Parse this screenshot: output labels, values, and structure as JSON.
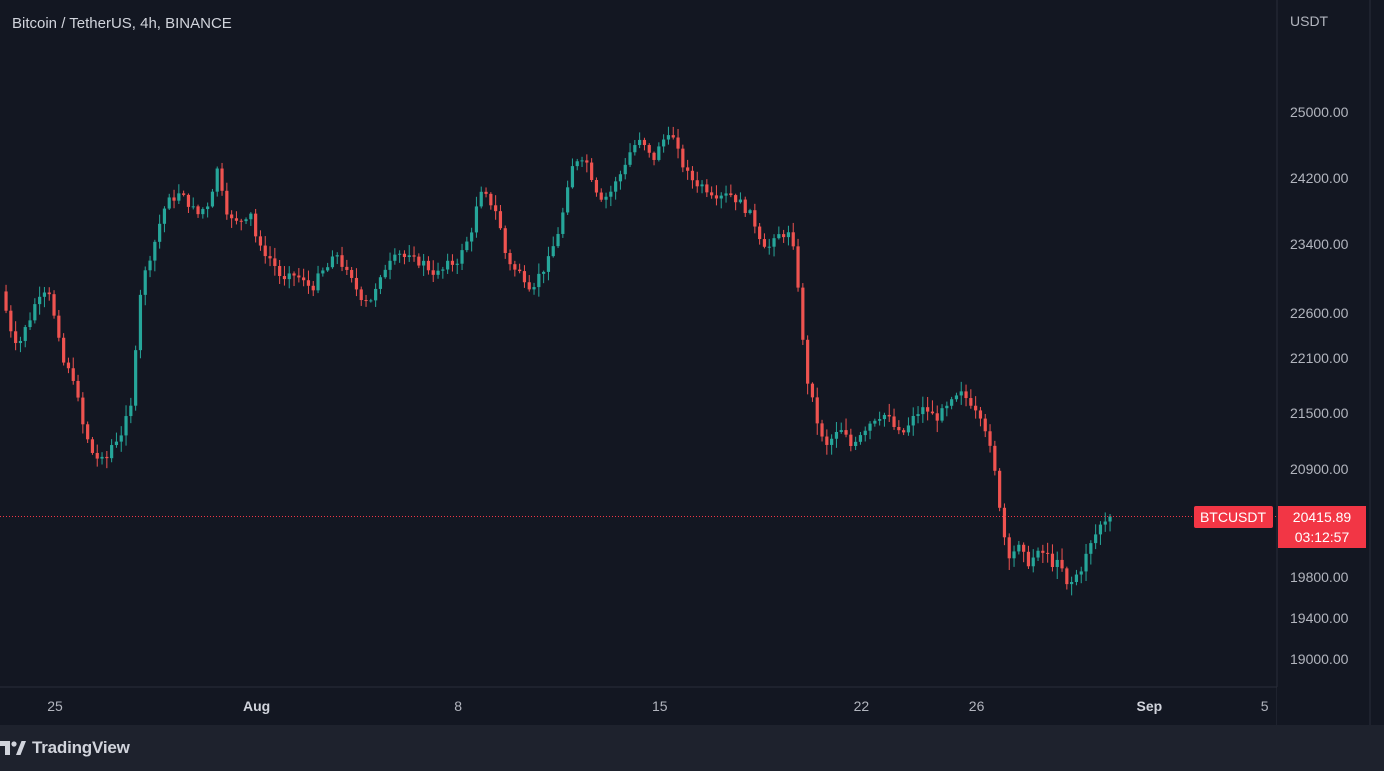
{
  "header": {
    "symbol_title": "Bitcoin / TetherUS, 4h, BINANCE"
  },
  "axis": {
    "unit": "USDT"
  },
  "footer": {
    "brand": "TradingView"
  },
  "colors": {
    "background": "#131722",
    "up": "#26a69a",
    "down": "#ef5350",
    "price_tag": "#f23645"
  },
  "chart_data": {
    "type": "candlestick",
    "title": "Bitcoin / TetherUS, 4h, BINANCE",
    "ylabel": "USDT",
    "ylim": [
      18700,
      26000
    ],
    "y_ticks": [
      "25000.00",
      "24200.00",
      "23400.00",
      "22600.00",
      "22100.00",
      "21500.00",
      "20900.00",
      "19800.00",
      "19400.00",
      "19000.00"
    ],
    "y_tick_values": [
      25000,
      24200,
      23400,
      22600,
      22100,
      21500,
      20900,
      19800,
      19400,
      19000
    ],
    "x_ticks": [
      {
        "label": "25",
        "bold": false
      },
      {
        "label": "Aug",
        "bold": true
      },
      {
        "label": "8",
        "bold": false
      },
      {
        "label": "15",
        "bold": false
      },
      {
        "label": "22",
        "bold": false
      },
      {
        "label": "26",
        "bold": false
      },
      {
        "label": "Sep",
        "bold": true
      },
      {
        "label": "5",
        "bold": false
      }
    ],
    "x_tick_days": [
      25,
      32,
      39,
      46,
      53,
      57,
      63,
      67
    ],
    "x_start_day": 23.3,
    "last_price_label": "BTCUSDT",
    "last_price": 20415.89,
    "last_price_text": "20415.89",
    "countdown": "03:12:57",
    "close_path": [
      [
        23.3,
        22850
      ],
      [
        23.6,
        22450
      ],
      [
        23.9,
        22250
      ],
      [
        24.3,
        22550
      ],
      [
        24.7,
        22900
      ],
      [
        25.0,
        22850
      ],
      [
        25.2,
        22400
      ],
      [
        25.5,
        22000
      ],
      [
        25.8,
        21900
      ],
      [
        26.1,
        21400
      ],
      [
        26.4,
        21100
      ],
      [
        26.7,
        21000
      ],
      [
        26.9,
        20950
      ],
      [
        27.1,
        21150
      ],
      [
        27.5,
        21300
      ],
      [
        27.8,
        21550
      ],
      [
        28.1,
        22800
      ],
      [
        28.4,
        23200
      ],
      [
        28.7,
        23500
      ],
      [
        28.9,
        23800
      ],
      [
        29.2,
        23950
      ],
      [
        29.5,
        24000
      ],
      [
        29.8,
        23900
      ],
      [
        30.1,
        23750
      ],
      [
        30.5,
        23900
      ],
      [
        30.8,
        24300
      ],
      [
        31.0,
        24050
      ],
      [
        31.2,
        23700
      ],
      [
        31.5,
        23650
      ],
      [
        31.8,
        23750
      ],
      [
        32.0,
        23800
      ],
      [
        32.2,
        23350
      ],
      [
        32.5,
        23300
      ],
      [
        32.8,
        23150
      ],
      [
        33.1,
        22950
      ],
      [
        33.5,
        23050
      ],
      [
        33.8,
        22950
      ],
      [
        34.1,
        22900
      ],
      [
        34.4,
        23050
      ],
      [
        34.7,
        23150
      ],
      [
        35.0,
        23300
      ],
      [
        35.2,
        23100
      ],
      [
        35.5,
        22950
      ],
      [
        35.8,
        22800
      ],
      [
        36.1,
        22750
      ],
      [
        36.4,
        22900
      ],
      [
        36.7,
        23200
      ],
      [
        37.0,
        23350
      ],
      [
        37.3,
        23250
      ],
      [
        37.6,
        23200
      ],
      [
        37.9,
        23200
      ],
      [
        38.2,
        23100
      ],
      [
        38.5,
        23050
      ],
      [
        38.8,
        23150
      ],
      [
        39.1,
        23200
      ],
      [
        39.4,
        23350
      ],
      [
        39.7,
        23650
      ],
      [
        39.9,
        24000
      ],
      [
        40.2,
        23950
      ],
      [
        40.5,
        23800
      ],
      [
        40.8,
        23300
      ],
      [
        41.1,
        23100
      ],
      [
        41.4,
        23050
      ],
      [
        41.7,
        22900
      ],
      [
        42.0,
        23050
      ],
      [
        42.3,
        23200
      ],
      [
        42.6,
        23500
      ],
      [
        42.9,
        23900
      ],
      [
        43.1,
        24300
      ],
      [
        43.4,
        24500
      ],
      [
        43.7,
        24350
      ],
      [
        43.9,
        24100
      ],
      [
        44.2,
        23950
      ],
      [
        44.5,
        24050
      ],
      [
        44.8,
        24250
      ],
      [
        45.1,
        24500
      ],
      [
        45.4,
        24650
      ],
      [
        45.7,
        24550
      ],
      [
        45.9,
        24400
      ],
      [
        46.2,
        24600
      ],
      [
        46.5,
        24800
      ],
      [
        46.8,
        24500
      ],
      [
        47.1,
        24250
      ],
      [
        47.4,
        24150
      ],
      [
        47.7,
        24100
      ],
      [
        47.9,
        24050
      ],
      [
        48.2,
        24000
      ],
      [
        48.5,
        24050
      ],
      [
        48.8,
        23950
      ],
      [
        49.1,
        23850
      ],
      [
        49.4,
        23700
      ],
      [
        49.7,
        23450
      ],
      [
        50.0,
        23350
      ],
      [
        50.3,
        23500
      ],
      [
        50.6,
        23550
      ],
      [
        50.9,
        23200
      ],
      [
        51.0,
        22800
      ],
      [
        51.2,
        22000
      ],
      [
        51.4,
        21700
      ],
      [
        51.6,
        21450
      ],
      [
        51.9,
        21100
      ],
      [
        52.2,
        21250
      ],
      [
        52.5,
        21300
      ],
      [
        52.8,
        21150
      ],
      [
        53.0,
        21250
      ],
      [
        53.3,
        21350
      ],
      [
        53.6,
        21450
      ],
      [
        53.9,
        21500
      ],
      [
        54.2,
        21400
      ],
      [
        54.5,
        21250
      ],
      [
        54.8,
        21350
      ],
      [
        55.1,
        21500
      ],
      [
        55.4,
        21550
      ],
      [
        55.7,
        21450
      ],
      [
        56.0,
        21500
      ],
      [
        56.3,
        21600
      ],
      [
        56.6,
        21700
      ],
      [
        56.9,
        21650
      ],
      [
        57.2,
        21550
      ],
      [
        57.4,
        21450
      ],
      [
        57.7,
        21000
      ],
      [
        57.9,
        20700
      ],
      [
        58.1,
        20250
      ],
      [
        58.3,
        20050
      ],
      [
        58.6,
        20100
      ],
      [
        58.9,
        19950
      ],
      [
        59.2,
        20000
      ],
      [
        59.5,
        20050
      ],
      [
        59.8,
        19950
      ],
      [
        60.1,
        19900
      ],
      [
        60.3,
        19700
      ],
      [
        60.5,
        19750
      ],
      [
        60.8,
        19900
      ],
      [
        61.1,
        20100
      ],
      [
        61.4,
        20300
      ],
      [
        61.7,
        20415.89
      ]
    ]
  }
}
